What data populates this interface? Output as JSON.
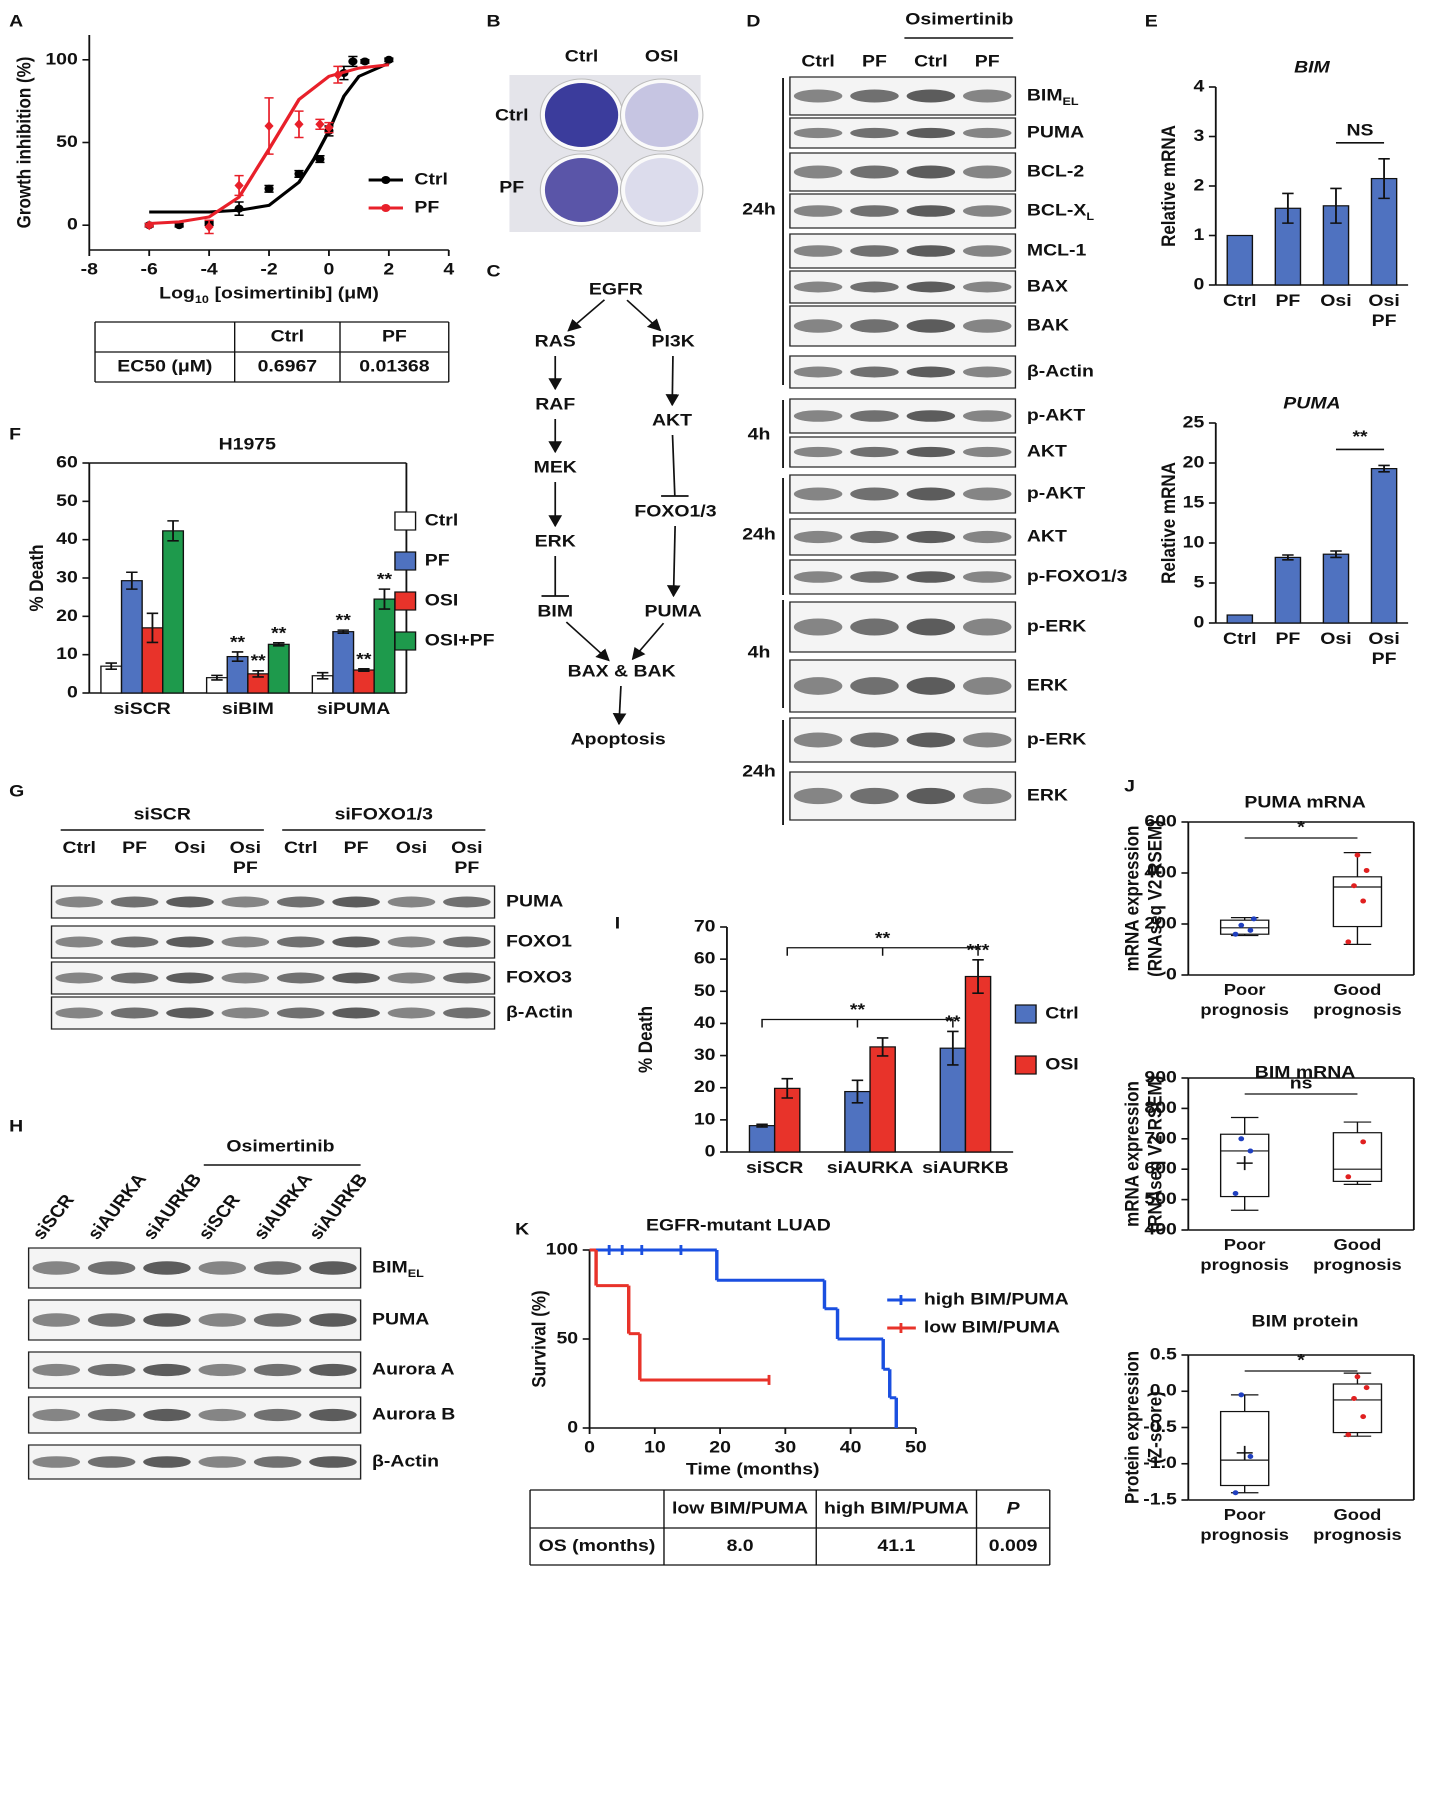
{
  "panel_labels": [
    "A",
    "B",
    "C",
    "D",
    "E",
    "F",
    "G",
    "H",
    "I",
    "J",
    "K"
  ],
  "chart_data": [
    {
      "type": "line",
      "x_label": {
        "text": "Log",
        "sub": "10",
        "rest": "[osimertinib] (μM)"
      },
      "y_label": "Growth inhibition (%)",
      "xlim": [
        -8,
        4
      ],
      "xticks": [
        -8,
        -6,
        -4,
        -2,
        0,
        2,
        4
      ],
      "ylim": [
        -15,
        115
      ],
      "yticks": [
        0,
        50,
        100
      ],
      "series": [
        {
          "name": "Ctrl",
          "color": "#000000",
          "marker": "circle",
          "x": [
            -6,
            -5,
            -4,
            -3,
            -2,
            -1,
            -0.3,
            0,
            0.5,
            0.8,
            1.2,
            2
          ],
          "values": [
            0,
            0,
            1,
            10,
            22,
            31,
            40,
            57,
            92,
            99,
            99,
            100
          ],
          "errors": [
            1,
            1,
            1,
            4,
            2,
            2,
            2,
            3,
            4,
            3,
            1,
            1
          ],
          "fit_x": [
            -6,
            -5,
            -4,
            -3,
            -2,
            -1,
            -0.5,
            0,
            0.5,
            1,
            2
          ],
          "fit": [
            8,
            8,
            8,
            9,
            12,
            26,
            40,
            57,
            78,
            90,
            98
          ]
        },
        {
          "name": "PF",
          "color": "#e8202a",
          "marker": "diamond",
          "x": [
            -6,
            -4,
            -3,
            -2,
            -1,
            -0.3,
            0,
            0.3
          ],
          "values": [
            0,
            -1,
            24,
            60,
            61,
            61,
            59,
            91
          ],
          "errors": [
            1,
            4,
            6,
            17,
            8,
            3,
            3,
            5
          ],
          "fit_x": [
            -6,
            -5,
            -4,
            -3,
            -2,
            -1,
            0,
            1,
            2
          ],
          "fit": [
            1,
            2,
            5,
            17,
            46,
            76,
            90,
            95,
            97
          ]
        }
      ]
    },
    {
      "type": "bar",
      "title": "BIM",
      "y_label": "Relative mRNA",
      "categories": [
        "Ctrl",
        "PF",
        "Osi",
        "Osi PF"
      ],
      "values": [
        1,
        1.55,
        1.6,
        2.15
      ],
      "errors": [
        0,
        0.3,
        0.35,
        0.4
      ],
      "color": "#4f72c0",
      "ylim": [
        0,
        4
      ],
      "yticks": [
        0,
        1,
        2,
        3,
        4
      ],
      "significance": {
        "text": "NS",
        "from": 2,
        "to": 3
      }
    },
    {
      "type": "bar",
      "title": "PUMA",
      "y_label": "Relative mRNA",
      "categories": [
        "Ctrl",
        "PF",
        "Osi",
        "Osi PF"
      ],
      "values": [
        1,
        8.2,
        8.6,
        19.3
      ],
      "errors": [
        0,
        0.3,
        0.4,
        0.4
      ],
      "color": "#4f72c0",
      "ylim": [
        0,
        25
      ],
      "yticks": [
        0,
        5,
        10,
        15,
        20,
        25
      ],
      "significance": {
        "text": "**",
        "from": 2,
        "to": 3
      }
    },
    {
      "type": "bar",
      "title": "H1975",
      "y_label": "% Death",
      "categories": [
        "siSCR",
        "siBIM",
        "siPUMA"
      ],
      "ylim": [
        0,
        60
      ],
      "yticks": [
        0,
        10,
        20,
        30,
        40,
        50,
        60
      ],
      "series": [
        {
          "name": "Ctrl",
          "color": "#ffffff",
          "values": [
            7,
            4,
            4.5
          ],
          "errors": [
            0.8,
            0.6,
            0.8
          ]
        },
        {
          "name": "PF",
          "color": "#4f72c0",
          "values": [
            29.3,
            9.5,
            16
          ],
          "errors": [
            2.2,
            1.2,
            0.4
          ]
        },
        {
          "name": "OSI",
          "color": "#e8332a",
          "values": [
            17,
            5,
            6
          ],
          "errors": [
            3.8,
            0.8,
            0.3
          ]
        },
        {
          "name": "OSI+PF",
          "color": "#1e9a4c",
          "values": [
            42.3,
            12.7,
            24.5
          ],
          "errors": [
            2.6,
            0.4,
            2.6
          ]
        }
      ],
      "annotations": [
        {
          "text": "**",
          "series": 1,
          "category": 1
        },
        {
          "text": "**",
          "series": 2,
          "category": 1
        },
        {
          "text": "**",
          "series": 3,
          "category": 1
        },
        {
          "text": "**",
          "series": 1,
          "category": 2
        },
        {
          "text": "**",
          "series": 2,
          "category": 2
        },
        {
          "text": "**",
          "series": 3,
          "category": 2
        }
      ]
    },
    {
      "type": "bar",
      "y_label": "% Death",
      "categories": [
        "siSCR",
        "siAURKA",
        "siAURKB"
      ],
      "ylim": [
        0,
        70
      ],
      "yticks": [
        0,
        10,
        20,
        30,
        40,
        50,
        60,
        70
      ],
      "series": [
        {
          "name": "Ctrl",
          "color": "#4f72c0",
          "values": [
            8.2,
            18.8,
            32.3
          ],
          "errors": [
            0.4,
            3.5,
            5.2
          ]
        },
        {
          "name": "OSI",
          "color": "#e8332a",
          "values": [
            19.8,
            32.7,
            54.6
          ],
          "errors": [
            3,
            2.8,
            5.2
          ]
        }
      ],
      "annotations": [
        {
          "text": "**",
          "series": 0,
          "category": 2
        },
        {
          "text": "***",
          "series": 1,
          "category": 2
        }
      ],
      "brackets": [
        {
          "text": "**",
          "series": 0,
          "from": 0,
          "to": 2
        },
        {
          "text": "**",
          "series": 1,
          "from": 0,
          "to": 2
        }
      ]
    },
    {
      "type": "box",
      "title": "PUMA mRNA",
      "y_label": [
        "mRNA expression",
        "(RNAseq V2 RSEM)"
      ],
      "categories": [
        "Poor prognosis",
        "Good prognosis"
      ],
      "ylim": [
        0,
        600
      ],
      "yticks": [
        0,
        200,
        400,
        600
      ],
      "boxes": [
        {
          "color": "#1f3fbf",
          "min": 155,
          "q1": 160,
          "median": 185,
          "q3": 215,
          "max": 225,
          "points": [
            160,
            175,
            195,
            220
          ]
        },
        {
          "color": "#e02020",
          "min": 120,
          "q1": 190,
          "median": 345,
          "q3": 385,
          "max": 480,
          "points": [
            130,
            290,
            350,
            410,
            470
          ]
        }
      ],
      "significance": {
        "text": "*",
        "from": 0,
        "to": 1
      }
    },
    {
      "type": "box",
      "title": "BIM mRNA",
      "y_label": [
        "mRNA expression",
        "(RNAseq V2 RSEM)"
      ],
      "categories": [
        "Poor prognosis",
        "Good prognosis"
      ],
      "ylim": [
        400,
        900
      ],
      "yticks": [
        400,
        500,
        600,
        700,
        800,
        900
      ],
      "boxes": [
        {
          "color": "#1f3fbf",
          "min": 465,
          "q1": 510,
          "median": 660,
          "q3": 715,
          "max": 770,
          "mean": 620,
          "points": [
            520,
            660,
            700
          ]
        },
        {
          "color": "#e02020",
          "min": 550,
          "q1": 560,
          "median": 600,
          "q3": 720,
          "max": 755,
          "points": [
            575,
            690
          ]
        }
      ],
      "significance": {
        "text": "ns",
        "from": 0,
        "to": 1
      }
    },
    {
      "type": "box",
      "title": "BIM protein",
      "y_label": [
        "Protein expression",
        "(Z-score)"
      ],
      "categories": [
        "Poor prognosis",
        "Good prognosis"
      ],
      "ylim": [
        -1.5,
        0.5
      ],
      "yticks": [
        -1.5,
        {
          "value": -1,
          "label": "-1.0"
        },
        -0.5,
        {
          "value": 0,
          "label": "0.0"
        },
        0.5
      ],
      "boxes": [
        {
          "color": "#1f3fbf",
          "min": -1.4,
          "q1": -1.3,
          "median": -0.95,
          "q3": -0.28,
          "max": -0.05,
          "mean": -0.85,
          "points": [
            -1.4,
            -0.9,
            -0.05
          ]
        },
        {
          "color": "#e02020",
          "min": -0.62,
          "q1": -0.57,
          "median": -0.12,
          "q3": 0.1,
          "max": 0.25,
          "points": [
            -0.6,
            -0.35,
            -0.1,
            0.05,
            0.2
          ]
        }
      ],
      "significance": {
        "text": "*",
        "from": 0,
        "to": 1
      }
    },
    {
      "type": "survival",
      "title": "EGFR-mutant LUAD",
      "x_label": "Time (months)",
      "y_label": "Survival (%)",
      "xlim": [
        0,
        50
      ],
      "xticks": [
        0,
        10,
        20,
        30,
        40,
        50
      ],
      "ylim": [
        0,
        100
      ],
      "yticks": [
        0,
        50,
        100
      ],
      "series": [
        {
          "name": "high BIM/PUMA",
          "color": "#1a4fe0",
          "x": [
            0,
            19.5,
            36,
            38,
            45,
            46,
            47
          ],
          "values": [
            100,
            83,
            67,
            50,
            33,
            17,
            0
          ],
          "censored": [
            3,
            5,
            8,
            14
          ]
        },
        {
          "name": "low BIM/PUMA",
          "color": "#e8332a",
          "x": [
            0,
            1,
            6,
            7.7,
            27.5
          ],
          "values": [
            100,
            80,
            53,
            27,
            27
          ],
          "censored": [
            27.5
          ]
        }
      ]
    }
  ],
  "table_a": {
    "columns": [
      "Ctrl",
      "PF"
    ],
    "rows": [
      {
        "label": "EC50 (μM)",
        "cells": [
          "0.6967",
          "0.01368"
        ]
      }
    ]
  },
  "table_k": {
    "columns": [
      "low BIM/PUMA",
      "high BIM/PUMA",
      "P"
    ],
    "rows": [
      {
        "label": "OS (months)",
        "cells": [
          "8.0",
          "41.1",
          "0.009"
        ]
      }
    ]
  },
  "plate_b": {
    "columns": [
      "Ctrl",
      "OSI"
    ],
    "rows": [
      "Ctrl",
      "PF"
    ]
  },
  "pathway_c": {
    "nodes": [
      "EGFR",
      "RAS",
      "PI3K",
      "RAF",
      "AKT",
      "MEK",
      "FOXO1/3",
      "ERK",
      "BIM",
      "PUMA",
      "BAX & BAK",
      "Apoptosis"
    ]
  },
  "blot_d": {
    "treatment": "Osimertinib",
    "lanes": [
      "Ctrl",
      "PF",
      "Ctrl",
      "PF"
    ],
    "groups": [
      {
        "time": "24h",
        "rows": [
          {
            "text": "BIM",
            "sub": "EL"
          },
          "PUMA",
          "BCL-2",
          {
            "text": "BCL-X",
            "sub": "L"
          },
          "MCL-1",
          "BAX",
          "BAK",
          "β-Actin"
        ]
      },
      {
        "time": "4h",
        "rows": [
          "p-AKT",
          "AKT"
        ]
      },
      {
        "time": "24h",
        "rows": [
          "p-AKT",
          "AKT",
          "p-FOXO1/3"
        ]
      },
      {
        "time": "4h",
        "rows": [
          "p-ERK",
          "ERK"
        ]
      },
      {
        "time": "24h",
        "rows": [
          "p-ERK",
          "ERK"
        ]
      }
    ]
  },
  "blot_g": {
    "groups": [
      {
        "name": "siSCR",
        "lanes": [
          "Ctrl",
          "PF",
          "Osi",
          "Osi PF"
        ]
      },
      {
        "name": "siFOXO1/3",
        "lanes": [
          "Ctrl",
          "PF",
          "Osi",
          "Osi PF"
        ]
      }
    ],
    "rows": [
      "PUMA",
      "FOXO1",
      "FOXO3",
      "β-Actin"
    ]
  },
  "blot_h": {
    "treatment": "Osimertinib",
    "lanes": [
      "siSCR",
      "siAURKA",
      "siAURKB",
      "siSCR",
      "siAURKA",
      "siAURKB"
    ],
    "rows": [
      {
        "text": "BIM",
        "sub": "EL"
      },
      "PUMA",
      "Aurora A",
      "Aurora B",
      "β-Actin"
    ]
  }
}
